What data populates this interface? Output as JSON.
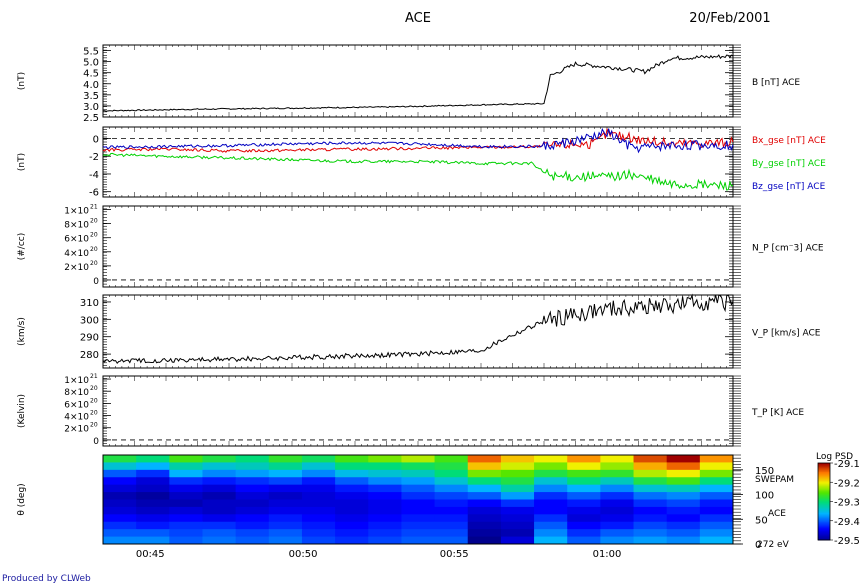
{
  "header": {
    "title": "ACE",
    "date": "20/Feb/2001"
  },
  "footer": {
    "credit": "Produced by CLWeb"
  },
  "time_axis": {
    "ticks": [
      "00:45",
      "00:50",
      "00:55",
      "01:00"
    ],
    "minor_ticks_per_major": 5
  },
  "colors": {
    "bx": "#e00000",
    "by": "#00d000",
    "bz": "#0000c0",
    "trace": "#000000"
  },
  "chart_data": [
    {
      "type": "line",
      "panel": "B",
      "ylabel": "(nT)",
      "ylim": [
        2.5,
        5.75
      ],
      "y_ticks": [
        "5.5",
        "5.0",
        "4.5",
        "4.0",
        "3.5",
        "3.0",
        "2.5"
      ],
      "series": [
        {
          "name": "B [nT] ACE",
          "color": "#000000",
          "x": [
            0,
            15,
            30,
            45,
            60,
            70,
            71,
            75,
            82,
            86,
            90,
            95,
            100
          ],
          "y": [
            2.78,
            2.85,
            2.9,
            2.95,
            3.05,
            3.1,
            4.35,
            4.9,
            4.7,
            4.55,
            5.15,
            5.2,
            5.25
          ]
        }
      ]
    },
    {
      "type": "line",
      "panel": "B_gse",
      "ylabel": "(nT)",
      "ylim": [
        -6.6,
        1.3
      ],
      "y_ticks": [
        "0",
        "-2",
        "-4",
        "-6"
      ],
      "dashed_reference": 0,
      "series": [
        {
          "name": "Bx_gse [nT] ACE",
          "color": "#e00000",
          "x": [
            0,
            10,
            20,
            30,
            40,
            50,
            60,
            70,
            75,
            78,
            80,
            84,
            90,
            100
          ],
          "y": [
            -1.3,
            -1.2,
            -1.4,
            -1.3,
            -1.2,
            -1.1,
            -1.0,
            -0.9,
            -0.6,
            -0.6,
            0.6,
            0.0,
            -0.6,
            -0.4
          ]
        },
        {
          "name": "By_gse [nT] ACE",
          "color": "#00d000",
          "x": [
            0,
            10,
            20,
            30,
            40,
            50,
            60,
            68,
            70,
            72,
            80,
            84,
            90,
            100
          ],
          "y": [
            -1.8,
            -2.0,
            -2.2,
            -2.4,
            -2.6,
            -2.6,
            -2.8,
            -2.8,
            -3.8,
            -4.3,
            -4.3,
            -4.1,
            -5.2,
            -5.3
          ]
        },
        {
          "name": "Bz_gse [nT] ACE",
          "color": "#0000c0",
          "x": [
            0,
            10,
            20,
            30,
            40,
            50,
            60,
            70,
            75,
            78,
            80,
            84,
            90,
            100
          ],
          "y": [
            -1.0,
            -0.9,
            -0.8,
            -0.6,
            -0.5,
            -0.6,
            -0.9,
            -0.9,
            -0.3,
            0.2,
            0.7,
            -1.1,
            -0.8,
            -0.7
          ]
        }
      ]
    },
    {
      "type": "line",
      "panel": "N_P",
      "ylabel": "(#/cc)",
      "ylim": [
        -0.1,
        1.05
      ],
      "y_ticks_base": [
        "1×10",
        "8×10",
        "6×10",
        "4×10",
        "2×10",
        "0"
      ],
      "y_ticks_exp": [
        "21",
        "20",
        "20",
        "20",
        "20",
        ""
      ],
      "dashed_reference": 0,
      "series": [
        {
          "name": "N_P [cm^-3] ACE",
          "label": "N_P [cm⁻3] ACE",
          "color": "#000000",
          "x": [],
          "y": []
        }
      ]
    },
    {
      "type": "line",
      "panel": "V_P",
      "ylabel": "(km/s)",
      "ylim": [
        272,
        314
      ],
      "y_ticks": [
        "310",
        "300",
        "290",
        "280"
      ],
      "series": [
        {
          "name": "V_P [km/s] ACE",
          "color": "#000000",
          "x": [
            0,
            10,
            20,
            30,
            40,
            50,
            55,
            60,
            65,
            70,
            75,
            80,
            85,
            90,
            95,
            100
          ],
          "y": [
            276,
            276.5,
            277,
            278,
            279,
            280,
            281,
            282,
            291,
            299,
            303,
            306,
            307,
            308,
            310,
            310
          ]
        }
      ]
    },
    {
      "type": "line",
      "panel": "T_P",
      "ylabel": "(Kelvin)",
      "ylim": [
        -0.1,
        1.05
      ],
      "y_ticks_base": [
        "1×10",
        "8×10",
        "6×10",
        "4×10",
        "2×10",
        "0"
      ],
      "y_ticks_exp": [
        "21",
        "20",
        "20",
        "20",
        "20",
        ""
      ],
      "dashed_reference": 0,
      "series": [
        {
          "name": "T_P [K] ACE",
          "color": "#000000",
          "x": [],
          "y": []
        }
      ]
    },
    {
      "type": "heatmap",
      "panel": "SWEPAM",
      "ylabel": "θ (deg)",
      "ylim": [
        0,
        180
      ],
      "y_ticks": [
        "150",
        "100",
        "50",
        "0"
      ],
      "right_labels": [
        "SWEPAM",
        "ACE",
        "272 eV"
      ],
      "colorbar": {
        "label": "Log PSD",
        "min": -29.5,
        "max": -29.1,
        "ticks": [
          "-29.1",
          "-29.2",
          "-29.3",
          "-29.4",
          "-29.5"
        ]
      },
      "cols": 19,
      "rows": 12,
      "values": [
        [
          -29.28,
          -29.3,
          -29.26,
          -29.28,
          -29.3,
          -29.27,
          -29.29,
          -29.26,
          -29.24,
          -29.22,
          -29.26,
          -29.14,
          -29.18,
          -29.2,
          -29.16,
          -29.2,
          -29.13,
          -29.1,
          -29.16
        ],
        [
          -29.34,
          -29.36,
          -29.32,
          -29.34,
          -29.33,
          -29.31,
          -29.34,
          -29.3,
          -29.3,
          -29.29,
          -29.28,
          -29.18,
          -29.21,
          -29.24,
          -29.2,
          -29.23,
          -29.17,
          -29.14,
          -29.2
        ],
        [
          -29.4,
          -29.42,
          -29.36,
          -29.38,
          -29.37,
          -29.36,
          -29.38,
          -29.35,
          -29.34,
          -29.33,
          -29.3,
          -29.24,
          -29.25,
          -29.28,
          -29.26,
          -29.27,
          -29.22,
          -29.2,
          -29.24
        ],
        [
          -29.44,
          -29.46,
          -29.42,
          -29.43,
          -29.42,
          -29.41,
          -29.43,
          -29.4,
          -29.38,
          -29.37,
          -29.34,
          -29.3,
          -29.28,
          -29.34,
          -29.3,
          -29.33,
          -29.28,
          -29.26,
          -29.3
        ],
        [
          -29.46,
          -29.47,
          -29.45,
          -29.46,
          -29.44,
          -29.45,
          -29.45,
          -29.43,
          -29.42,
          -29.4,
          -29.38,
          -29.36,
          -29.32,
          -29.38,
          -29.36,
          -29.38,
          -29.34,
          -29.33,
          -29.36
        ],
        [
          -29.48,
          -29.49,
          -29.47,
          -29.48,
          -29.46,
          -29.47,
          -29.46,
          -29.45,
          -29.44,
          -29.42,
          -29.41,
          -29.4,
          -29.37,
          -29.42,
          -29.4,
          -29.42,
          -29.39,
          -29.38,
          -29.4
        ],
        [
          -29.47,
          -29.48,
          -29.48,
          -29.47,
          -29.47,
          -29.46,
          -29.46,
          -29.46,
          -29.45,
          -29.44,
          -29.43,
          -29.44,
          -29.42,
          -29.44,
          -29.43,
          -29.45,
          -29.42,
          -29.41,
          -29.43
        ],
        [
          -29.46,
          -29.47,
          -29.46,
          -29.47,
          -29.46,
          -29.45,
          -29.45,
          -29.46,
          -29.45,
          -29.44,
          -29.44,
          -29.46,
          -29.45,
          -29.44,
          -29.45,
          -29.46,
          -29.44,
          -29.43,
          -29.44
        ],
        [
          -29.44,
          -29.45,
          -29.44,
          -29.45,
          -29.44,
          -29.43,
          -29.44,
          -29.45,
          -29.44,
          -29.43,
          -29.43,
          -29.47,
          -29.46,
          -29.42,
          -29.46,
          -29.45,
          -29.43,
          -29.44,
          -29.42
        ],
        [
          -29.42,
          -29.43,
          -29.42,
          -29.42,
          -29.43,
          -29.42,
          -29.43,
          -29.44,
          -29.43,
          -29.42,
          -29.42,
          -29.48,
          -29.47,
          -29.4,
          -29.44,
          -29.43,
          -29.41,
          -29.42,
          -29.4
        ],
        [
          -29.4,
          -29.4,
          -29.41,
          -29.4,
          -29.41,
          -29.4,
          -29.42,
          -29.43,
          -29.42,
          -29.41,
          -29.41,
          -29.49,
          -29.48,
          -29.38,
          -29.42,
          -29.4,
          -29.39,
          -29.4,
          -29.38
        ],
        [
          -29.38,
          -29.38,
          -29.4,
          -29.39,
          -29.4,
          -29.39,
          -29.41,
          -29.42,
          -29.41,
          -29.4,
          -29.4,
          -29.5,
          -29.46,
          -29.36,
          -29.4,
          -29.38,
          -29.37,
          -29.38,
          -29.36
        ]
      ]
    }
  ]
}
